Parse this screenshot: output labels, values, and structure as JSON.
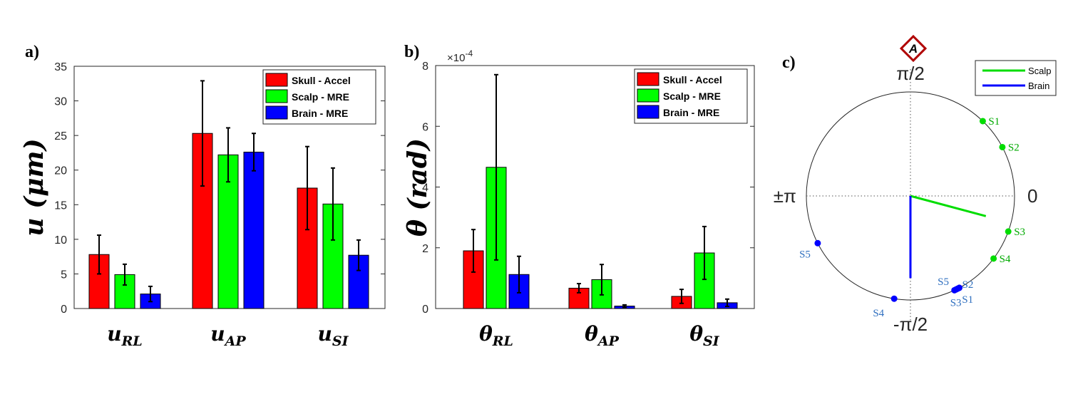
{
  "chart_data": [
    {
      "type": "bar",
      "panel_label": "a)",
      "ylabel": "u (μm)",
      "ylim": [
        0,
        35
      ],
      "yticks": [
        "0",
        "5",
        "10",
        "15",
        "20",
        "25",
        "30",
        "35"
      ],
      "categories": [
        {
          "base": "u",
          "sub": "RL"
        },
        {
          "base": "u",
          "sub": "AP"
        },
        {
          "base": "u",
          "sub": "SI"
        }
      ],
      "series": [
        {
          "name": "Skull - Accel",
          "color": "#ff0000",
          "values": [
            7.8,
            25.3,
            17.4
          ],
          "errors": [
            2.8,
            7.6,
            6.0
          ]
        },
        {
          "name": "Scalp - MRE",
          "color": "#00ff00",
          "values": [
            4.9,
            22.2,
            15.1
          ],
          "errors": [
            1.5,
            3.9,
            5.2
          ]
        },
        {
          "name": "Brain - MRE",
          "color": "#0000ff",
          "values": [
            2.1,
            22.6,
            7.7
          ],
          "errors": [
            1.1,
            2.7,
            2.2
          ]
        }
      ]
    },
    {
      "type": "bar",
      "panel_label": "b)",
      "ylabel": "θ (rad)",
      "multiplier": "×10",
      "multiplier_exp": "-4",
      "ylim": [
        0,
        8
      ],
      "yticks": [
        "0",
        "2",
        "4",
        "6",
        "8"
      ],
      "categories": [
        {
          "base": "θ",
          "sub": "RL"
        },
        {
          "base": "θ",
          "sub": "AP"
        },
        {
          "base": "θ",
          "sub": "SI"
        }
      ],
      "series": [
        {
          "name": "Skull - Accel",
          "color": "#ff0000",
          "values": [
            1.9,
            0.67,
            0.4
          ],
          "errors": [
            0.7,
            0.15,
            0.23
          ]
        },
        {
          "name": "Scalp - MRE",
          "color": "#00ff00",
          "values": [
            4.65,
            0.95,
            1.83
          ],
          "errors": [
            3.05,
            0.5,
            0.87
          ]
        },
        {
          "name": "Brain - MRE",
          "color": "#0000ff",
          "values": [
            1.12,
            0.08,
            0.19
          ],
          "errors": [
            0.6,
            0.04,
            0.12
          ]
        }
      ]
    },
    {
      "type": "polar",
      "panel_label": "c)",
      "badge": "A",
      "angle_labels": {
        "top": "π/2",
        "bottom": "-π/2",
        "left": "±π",
        "right": "0"
      },
      "series": [
        {
          "name": "Scalp",
          "color": "#00dd00",
          "label_color": "#00aa00",
          "mean_vector": {
            "angle_deg": -15,
            "magnitude": 0.75
          },
          "points": [
            {
              "label": "S1",
              "angle_deg": 46
            },
            {
              "label": "S2",
              "angle_deg": 28
            },
            {
              "label": "S3",
              "angle_deg": -20
            },
            {
              "label": "S4",
              "angle_deg": -37
            }
          ]
        },
        {
          "name": "Brain",
          "color": "#0000ff",
          "label_color": "#2f6fbf",
          "mean_vector": {
            "angle_deg": -90,
            "magnitude": 0.79
          },
          "points": [
            {
              "label": "S1",
              "angle_deg": -63
            },
            {
              "label": "S2",
              "angle_deg": -62
            },
            {
              "label": "S3",
              "angle_deg": -65
            },
            {
              "label": "S4",
              "angle_deg": -99
            },
            {
              "label": "S5",
              "angle_deg": -64
            },
            {
              "label": "S5",
              "angle_deg": -153
            }
          ]
        }
      ]
    }
  ]
}
